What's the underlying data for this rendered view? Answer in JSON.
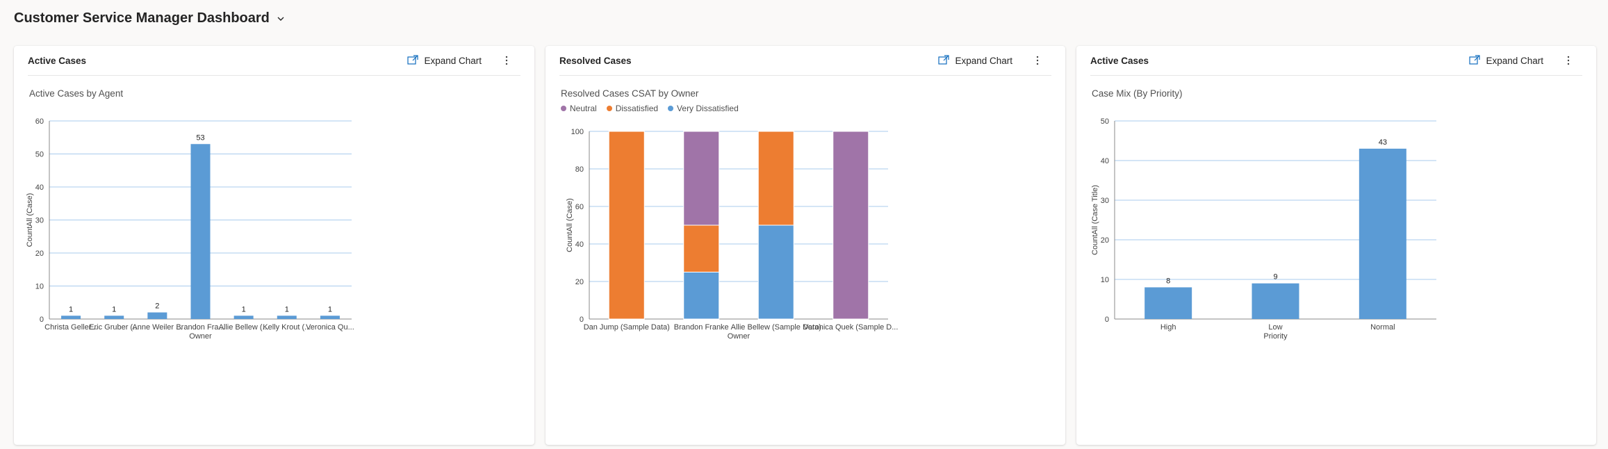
{
  "page": {
    "title": "Customer Service Manager Dashboard"
  },
  "icons": {
    "title_chevron": "chevron-down-icon",
    "expand": "expand-chart-icon",
    "more": "more-vertical-icon"
  },
  "cards": [
    {
      "title": "Active Cases",
      "expand_label": "Expand Chart",
      "chart_data": {
        "type": "bar",
        "title": "Active Cases by Agent",
        "xlabel": "Owner",
        "ylabel": "CountAll (Case)",
        "categories": [
          "Christa Geller...",
          "Eric Gruber (...",
          "Anne Weiler ...",
          "Brandon Fra...",
          "Allie Bellew (...",
          "Kelly Krout (...",
          "Veronica Qu..."
        ],
        "values": [
          1,
          1,
          2,
          53,
          1,
          1,
          1
        ],
        "ylim": [
          0,
          60
        ],
        "yticks": [
          0,
          10,
          20,
          30,
          40,
          50,
          60
        ],
        "color": "#5b9bd5",
        "grid": true,
        "data_labels": true
      }
    },
    {
      "title": "Resolved Cases",
      "expand_label": "Expand Chart",
      "chart_data": {
        "type": "bar",
        "stacked": true,
        "title": "Resolved Cases CSAT by Owner",
        "xlabel": "Owner",
        "ylabel": "CountAll (Case)",
        "categories": [
          "Dan Jump (Sample Data)",
          "Brandon Franke",
          "Allie Bellew (Sample Data)",
          "Veronica Quek (Sample D..."
        ],
        "series": [
          {
            "name": "Very Dissatisfied",
            "color": "#5b9bd5",
            "values": [
              0,
              25,
              50,
              0
            ]
          },
          {
            "name": "Dissatisfied",
            "color": "#ed7d31",
            "values": [
              100,
              25,
              50,
              0
            ]
          },
          {
            "name": "Neutral",
            "color": "#a074a8",
            "values": [
              0,
              50,
              0,
              100
            ]
          }
        ],
        "legend": [
          "Neutral",
          "Dissatisfied",
          "Very Dissatisfied"
        ],
        "legend_position": "top-left",
        "ylim": [
          0,
          100
        ],
        "yticks": [
          0,
          20,
          40,
          60,
          80,
          100
        ],
        "grid": true
      }
    },
    {
      "title": "Active Cases",
      "expand_label": "Expand Chart",
      "chart_data": {
        "type": "bar",
        "title": "Case Mix (By Priority)",
        "xlabel": "Priority",
        "ylabel": "CountAll (Case Title)",
        "categories": [
          "High",
          "Low",
          "Normal"
        ],
        "values": [
          8,
          9,
          43
        ],
        "ylim": [
          0,
          50
        ],
        "yticks": [
          0,
          10,
          20,
          30,
          40,
          50
        ],
        "color": "#5b9bd5",
        "grid": true,
        "data_labels": true
      }
    }
  ]
}
